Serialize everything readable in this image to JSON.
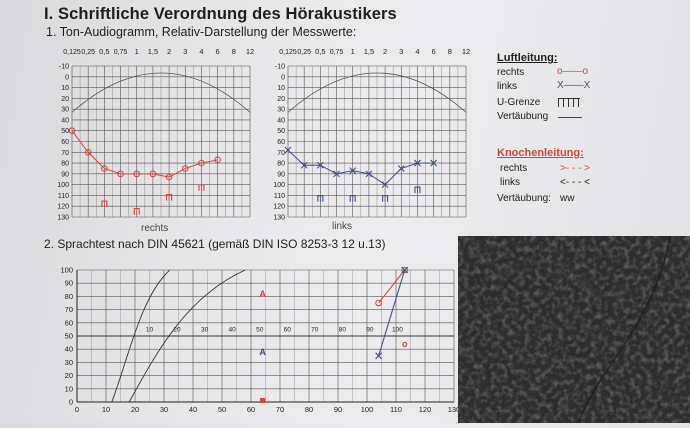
{
  "title": "I. Schriftliche Verordnung des Hörakustikers",
  "section1": "1. Ton-Audiogramm, Relativ-Darstellung der Messwerte:",
  "section2": "2. Sprachtest nach DIN 45621 (gemäß DIN ISO 8253-3 12 u.13)",
  "audiogram": {
    "freq_labels": [
      "0,125",
      "0,25",
      "0,5",
      "0,75",
      "1",
      "1,5",
      "2",
      "3",
      "4",
      "6",
      "8",
      "12"
    ],
    "db_labels": [
      "-10",
      "0",
      "10",
      "20",
      "30",
      "40",
      "50",
      "60",
      "70",
      "80",
      "90",
      "100",
      "110",
      "120",
      "130"
    ],
    "right_label": "rechts",
    "left_label": "links"
  },
  "chart_data": [
    {
      "type": "line",
      "title": "rechts",
      "xlabel": "",
      "ylabel": "",
      "x_categories": [
        "0,125",
        "0,25",
        "0,5",
        "0,75",
        "1",
        "1,5",
        "2",
        "3",
        "4",
        "6",
        "8",
        "12"
      ],
      "ylim": [
        -10,
        130
      ],
      "y_inverted": true,
      "series": [
        {
          "name": "rechts",
          "marker": "circle",
          "color": "#d0463f",
          "x": [
            "0,125",
            "0,25",
            "0,5",
            "0,75",
            "1",
            "1,5",
            "2",
            "3",
            "4",
            "6"
          ],
          "values": [
            50,
            70,
            85,
            90,
            90,
            90,
            93,
            85,
            80,
            77
          ]
        }
      ],
      "bone_markers": {
        "color": "#d0463f",
        "x": [
          "0,5",
          "1",
          "2",
          "4"
        ],
        "values": [
          118,
          125,
          112,
          103
        ]
      }
    },
    {
      "type": "line",
      "title": "links",
      "xlabel": "",
      "ylabel": "",
      "x_categories": [
        "0,125",
        "0,25",
        "0,5",
        "0,75",
        "1",
        "1,5",
        "2",
        "3",
        "4",
        "6",
        "8",
        "12"
      ],
      "ylim": [
        -10,
        130
      ],
      "y_inverted": true,
      "series": [
        {
          "name": "links",
          "marker": "cross",
          "color": "#3f4f88",
          "x": [
            "0,125",
            "0,25",
            "0,5",
            "0,75",
            "1",
            "1,5",
            "2",
            "3",
            "4",
            "6"
          ],
          "values": [
            68,
            82,
            82,
            90,
            87,
            90,
            100,
            85,
            80,
            80
          ]
        }
      ],
      "bone_markers": {
        "color": "#3f4f88",
        "x": [
          "0,5",
          "1",
          "2",
          "4"
        ],
        "values": [
          113,
          113,
          113,
          105
        ]
      }
    },
    {
      "type": "line",
      "title": "",
      "xlabel": "",
      "ylabel": "",
      "x_ticks": [
        0,
        10,
        20,
        30,
        40,
        50,
        60,
        70,
        80,
        90,
        100,
        110,
        120,
        130
      ],
      "y_ticks": [
        0,
        10,
        20,
        30,
        40,
        50,
        60,
        70,
        80,
        90,
        100
      ],
      "xlim": [
        0,
        130
      ],
      "ylim": [
        0,
        100
      ],
      "inner_axis_labels": [
        "10",
        "20",
        "30",
        "40",
        "50",
        "60",
        "70",
        "80",
        "90",
        "100"
      ],
      "series": [
        {
          "name": "rechts",
          "color": "#d0463f",
          "x": [
            104,
            113
          ],
          "values": [
            75,
            100
          ]
        },
        {
          "name": "links",
          "color": "#3f4f88",
          "x": [
            104,
            113
          ],
          "values": [
            35,
            100
          ]
        }
      ],
      "markers": [
        {
          "label": "A",
          "color": "#d0463f",
          "x": 64,
          "y": 82
        },
        {
          "label": "A",
          "color": "#3f4f88",
          "x": 64,
          "y": 38
        },
        {
          "label": "o",
          "color": "#d0463f",
          "x": 113,
          "y": 44
        }
      ]
    }
  ],
  "legend": {
    "air_title": "Luftleitung:",
    "air_right": "rechts",
    "air_left": "links",
    "u_limit": "U-Grenze",
    "masking": "Vertäubung",
    "bone_title": "Knochenleitung:",
    "bone_right": "rechts",
    "bone_left": "links",
    "bone_masking": "Vertäubung:",
    "bone_masking_value": "ww",
    "air_right_symbol": "o——o",
    "air_left_symbol": "X——X",
    "bone_right_symbol": ">- - - >",
    "bone_left_symbol": "<- - - <"
  }
}
